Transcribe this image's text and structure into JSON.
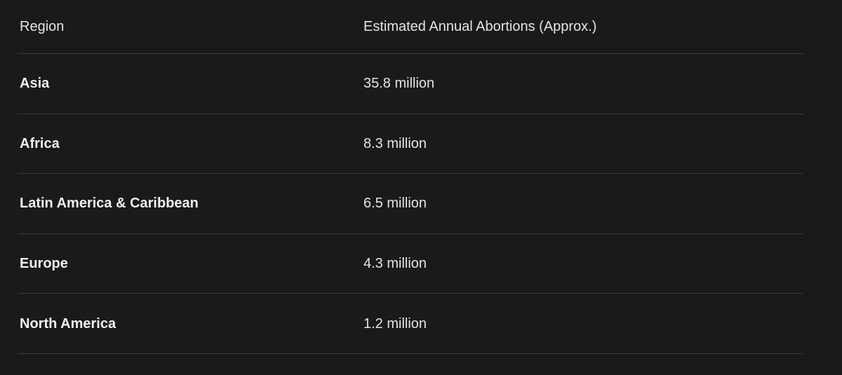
{
  "theme": {
    "background": "#1a1a1a",
    "text_regular": "#e6e4e1",
    "text_bold": "#f2f0ee",
    "divider": "#3c3c3e"
  },
  "chart_data": {
    "type": "table",
    "title": "",
    "columns": [
      "Region",
      "Estimated Annual Abortions (Approx.)"
    ],
    "rows": [
      [
        "Asia",
        "35.8 million"
      ],
      [
        "Africa",
        "8.3 million"
      ],
      [
        "Latin America & Caribbean",
        "6.5 million"
      ],
      [
        "Europe",
        "4.3 million"
      ],
      [
        "North America",
        "1.2 million"
      ]
    ],
    "values_numeric_millions": [
      35.8,
      8.3,
      6.5,
      4.3,
      1.2
    ]
  }
}
